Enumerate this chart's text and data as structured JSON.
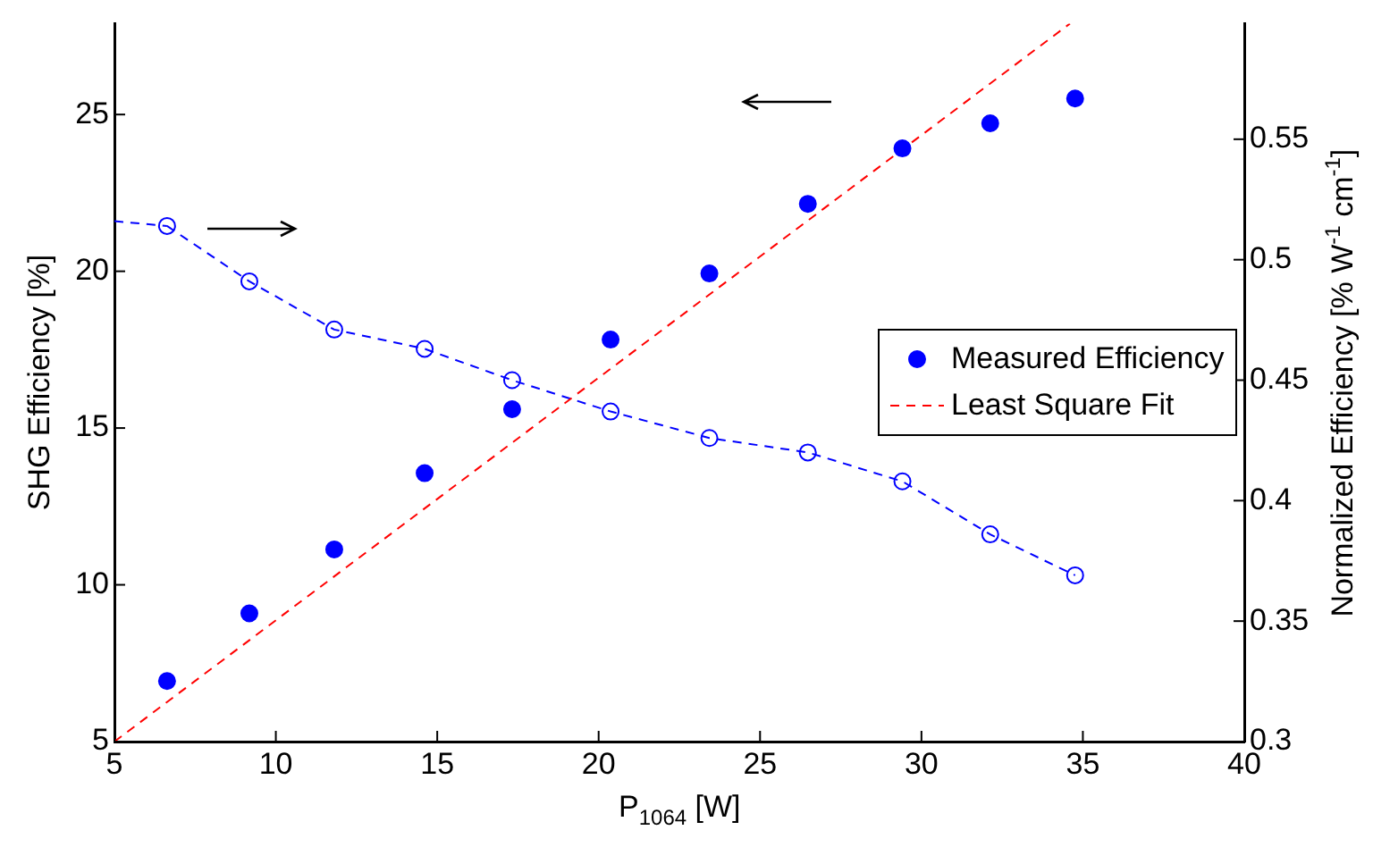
{
  "chart_data": {
    "type": "scatter",
    "xlabel": "P$_{1064}$ [W]",
    "ylabel": "SHG Efficiency [%]",
    "y2label": "Normalized Efficiency [% W$^{-1}$ cm$^{-1}$]",
    "xlim": [
      5,
      40
    ],
    "xticks": [
      5,
      10,
      15,
      20,
      25,
      30,
      35,
      40
    ],
    "ylim": [
      5,
      27.9
    ],
    "yticks": [
      5,
      10,
      15,
      20,
      25
    ],
    "y2lim": [
      0.3,
      0.598
    ],
    "y2ticks": [
      0.3,
      0.35,
      0.4,
      0.45,
      0.5,
      0.55
    ],
    "grid": false,
    "legend": "right",
    "series": [
      {
        "name": "Measured Efficiency",
        "type": "scatter",
        "color": "#0000ff",
        "marker": "circle",
        "x": [
          6.63,
          9.18,
          11.81,
          14.61,
          17.32,
          20.37,
          23.43,
          26.48,
          29.41,
          32.13,
          34.76
        ],
        "values": [
          6.93,
          9.09,
          11.13,
          13.56,
          15.6,
          17.82,
          19.93,
          22.15,
          23.92,
          24.72,
          25.51
        ]
      },
      {
        "name": "Least Square Fit",
        "type": "line",
        "color": "#ff0000",
        "marker": "none",
        "line_style": "dashed",
        "x": [
          5,
          34.6
        ],
        "values": [
          5,
          27.9
        ]
      },
      {
        "type": "line",
        "axis": "y2",
        "color": "#0000ff",
        "marker": "circle",
        "line_style": "dashed",
        "x": [
          6.63,
          9.18,
          11.81,
          14.61,
          17.32,
          20.37,
          23.43,
          26.48,
          29.41,
          32.13,
          34.76
        ],
        "values": [
          0.514,
          0.491,
          0.471,
          0.463,
          0.45,
          0.437,
          0.426,
          0.42,
          0.408,
          0.386,
          0.369
        ]
      },
      {
        "type": "line",
        "axis": "y2",
        "color": "#0000ff",
        "marker": "none",
        "line_style": "dashed",
        "x": [
          5,
          6.63
        ],
        "values": [
          0.516,
          0.514
        ]
      }
    ]
  }
}
